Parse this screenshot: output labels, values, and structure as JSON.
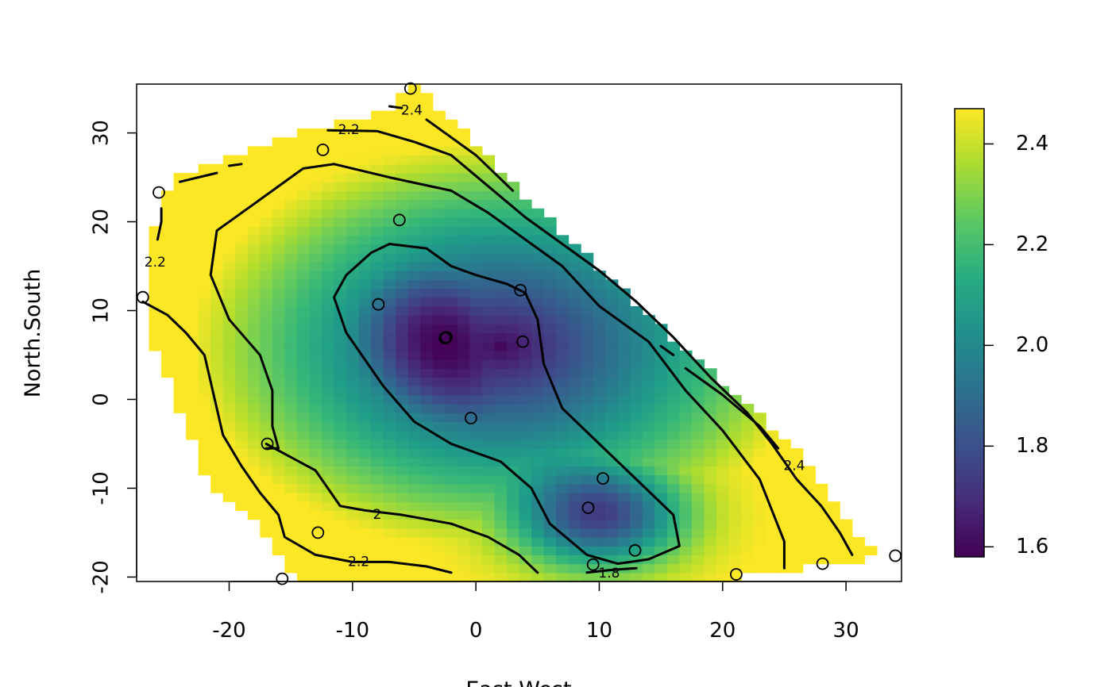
{
  "chart_data": {
    "type": "heatmap",
    "title": "",
    "xlabel": "East.West",
    "ylabel": "North.South",
    "xlim": [
      -27.5,
      34.5
    ],
    "ylim": [
      -20.5,
      35.5
    ],
    "x_ticks": [
      -20,
      -10,
      0,
      10,
      20,
      30
    ],
    "y_ticks": [
      -20,
      -10,
      0,
      10,
      20,
      30
    ],
    "x_tick_labels": [
      "-20",
      "-10",
      "0",
      "10",
      "20",
      "30"
    ],
    "y_tick_labels": [
      "-20",
      "-10",
      "0",
      "10",
      "20",
      "30"
    ],
    "grid": false,
    "colorbar": {
      "range": [
        1.58,
        2.47
      ],
      "ticks": [
        1.6,
        1.8,
        2.0,
        2.2,
        2.4
      ],
      "tick_labels": [
        "1.6",
        "1.8",
        "2.0",
        "2.2",
        "2.4"
      ],
      "colormap": "viridis",
      "placement": "right"
    },
    "contour_levels": [
      1.8,
      2.0,
      2.2,
      2.4
    ],
    "contour_labels": [
      {
        "text": "2.4",
        "x": -5.2,
        "y": 32.5
      },
      {
        "text": "2.2",
        "x": -10.3,
        "y": 30.3
      },
      {
        "text": "2.2",
        "x": -26.0,
        "y": 15.4
      },
      {
        "text": "2.4",
        "x": 25.8,
        "y": -7.5
      },
      {
        "text": "2",
        "x": -8.0,
        "y": -13.0
      },
      {
        "text": "2.2",
        "x": -9.5,
        "y": -18.3
      },
      {
        "text": "1.8",
        "x": 10.8,
        "y": -19.6
      }
    ],
    "contours": [
      {
        "level": 1.8,
        "points": [
          [
            -7.0,
            17.5
          ],
          [
            -4.0,
            17.0
          ],
          [
            -2.0,
            15.0
          ],
          [
            0.0,
            14.0
          ],
          [
            2.5,
            13.0
          ],
          [
            4.0,
            12.0
          ],
          [
            5.0,
            9.0
          ],
          [
            5.5,
            4.0
          ],
          [
            7.0,
            -1.0
          ],
          [
            10.0,
            -5.0
          ],
          [
            13.0,
            -9.0
          ],
          [
            16.0,
            -13.0
          ],
          [
            16.5,
            -16.5
          ],
          [
            14.0,
            -18.0
          ],
          [
            11.5,
            -18.5
          ],
          [
            9.0,
            -17.5
          ],
          [
            6.0,
            -14.0
          ],
          [
            4.5,
            -10.0
          ],
          [
            2.0,
            -7.0
          ],
          [
            -2.0,
            -5.0
          ],
          [
            -5.0,
            -2.5
          ],
          [
            -7.5,
            1.5
          ],
          [
            -9.0,
            4.5
          ],
          [
            -10.5,
            7.5
          ],
          [
            -11.5,
            11.5
          ],
          [
            -10.5,
            14.0
          ],
          [
            -8.5,
            16.5
          ],
          [
            -7.0,
            17.5
          ]
        ]
      },
      {
        "level": 1.8,
        "points": [
          [
            9.0,
            -19.5
          ],
          [
            11.0,
            -19.2
          ],
          [
            13.0,
            -19.0
          ]
        ]
      },
      {
        "level": 2.0,
        "points": [
          [
            -11.5,
            26.5
          ],
          [
            -7.0,
            25.0
          ],
          [
            -2.0,
            23.5
          ],
          [
            1.0,
            21.0
          ],
          [
            4.0,
            18.0
          ],
          [
            7.0,
            15.0
          ],
          [
            10.0,
            10.5
          ],
          [
            14.0,
            6.5
          ],
          [
            17.0,
            1.0
          ],
          [
            20.0,
            -3.5
          ],
          [
            23.0,
            -9.0
          ],
          [
            25.0,
            -16.0
          ],
          [
            25.0,
            -19.0
          ]
        ]
      },
      {
        "level": 2.0,
        "points": [
          [
            -11.5,
            26.5
          ],
          [
            -14.0,
            26.0
          ],
          [
            -18.0,
            22.0
          ],
          [
            -21.0,
            19.0
          ],
          [
            -21.5,
            14.0
          ],
          [
            -20.0,
            9.0
          ],
          [
            -17.5,
            5.0
          ],
          [
            -16.5,
            1.0
          ],
          [
            -16.5,
            -3.0
          ],
          [
            -16.0,
            -5.5
          ],
          [
            -17.0,
            -5.5
          ]
        ]
      },
      {
        "level": 2.0,
        "points": [
          [
            -17.0,
            -5.0
          ],
          [
            -15.0,
            -6.5
          ],
          [
            -13.0,
            -8.0
          ],
          [
            -11.0,
            -12.0
          ],
          [
            -9.0,
            -12.5
          ],
          [
            -6.0,
            -13.0
          ],
          [
            -2.0,
            -14.0
          ],
          [
            1.0,
            -15.5
          ],
          [
            3.5,
            -17.5
          ],
          [
            5.0,
            -19.5
          ]
        ]
      },
      {
        "level": 2.2,
        "points": [
          [
            -12.0,
            30.3
          ],
          [
            -8.0,
            30.2
          ],
          [
            -5.0,
            29.0
          ],
          [
            -2.0,
            27.5
          ],
          [
            1.0,
            24.0
          ],
          [
            4.0,
            20.5
          ],
          [
            7.0,
            17.5
          ],
          [
            10.0,
            14.5
          ],
          [
            13.0,
            11.0
          ],
          [
            16.0,
            7.0
          ],
          [
            19.0,
            2.5
          ],
          [
            22.0,
            -1.5
          ],
          [
            24.0,
            -5.0
          ],
          [
            26.0,
            -9.0
          ],
          [
            28.0,
            -12.0
          ],
          [
            29.5,
            -15.0
          ],
          [
            30.5,
            -17.5
          ]
        ]
      },
      {
        "level": 2.2,
        "points": [
          [
            -27.0,
            11.0
          ],
          [
            -25.0,
            9.5
          ],
          [
            -23.5,
            7.5
          ],
          [
            -22.0,
            5.0
          ],
          [
            -21.5,
            2.0
          ],
          [
            -20.5,
            -4.0
          ],
          [
            -19.0,
            -7.5
          ],
          [
            -17.5,
            -10.5
          ],
          [
            -16.0,
            -13.0
          ],
          [
            -15.5,
            -15.5
          ],
          [
            -13.0,
            -17.5
          ],
          [
            -10.0,
            -18.3
          ],
          [
            -7.0,
            -18.3
          ],
          [
            -4.0,
            -18.8
          ],
          [
            -2.0,
            -19.5
          ]
        ]
      },
      {
        "level": 2.2,
        "points": [
          [
            -25.5,
            21.5
          ],
          [
            -25.5,
            20.0
          ],
          [
            -25.8,
            18.0
          ]
        ]
      },
      {
        "level": 2.2,
        "points": [
          [
            -24.0,
            24.5
          ],
          [
            -21.0,
            25.5
          ]
        ]
      },
      {
        "level": 2.2,
        "points": [
          [
            -20.0,
            26.3
          ],
          [
            -19.0,
            26.5
          ]
        ]
      },
      {
        "level": 2.4,
        "points": [
          [
            -7.0,
            33.0
          ],
          [
            -6.0,
            32.8
          ]
        ]
      },
      {
        "level": 2.4,
        "points": [
          [
            -4.0,
            31.5
          ],
          [
            -2.0,
            29.5
          ],
          [
            0.0,
            27.5
          ],
          [
            3.0,
            23.5
          ]
        ]
      },
      {
        "level": 2.4,
        "points": [
          [
            15.0,
            6.0
          ],
          [
            16.0,
            5.0
          ]
        ]
      },
      {
        "level": 2.4,
        "points": [
          [
            17.0,
            3.5
          ],
          [
            20.0,
            0.5
          ],
          [
            23.0,
            -3.0
          ],
          [
            24.5,
            -5.5
          ]
        ]
      }
    ],
    "points": [
      {
        "x": -5.3,
        "y": 35.0
      },
      {
        "x": -12.4,
        "y": 28.1
      },
      {
        "x": -25.7,
        "y": 23.3
      },
      {
        "x": -6.2,
        "y": 20.2
      },
      {
        "x": -27.0,
        "y": 11.5
      },
      {
        "x": -7.9,
        "y": 10.7
      },
      {
        "x": 3.6,
        "y": 12.3
      },
      {
        "x": -2.4,
        "y": 7.0
      },
      {
        "x": -2.5,
        "y": 6.9
      },
      {
        "x": 3.8,
        "y": 6.5
      },
      {
        "x": -0.4,
        "y": -2.1
      },
      {
        "x": -16.9,
        "y": -5.0
      },
      {
        "x": 10.3,
        "y": -8.9
      },
      {
        "x": 9.1,
        "y": -12.2
      },
      {
        "x": -12.8,
        "y": -15.0
      },
      {
        "x": 12.9,
        "y": -17.0
      },
      {
        "x": 9.5,
        "y": -18.6
      },
      {
        "x": -15.7,
        "y": -20.2
      },
      {
        "x": 21.1,
        "y": -19.7
      },
      {
        "x": 28.1,
        "y": -18.5
      },
      {
        "x": 34.0,
        "y": -17.6
      }
    ]
  }
}
